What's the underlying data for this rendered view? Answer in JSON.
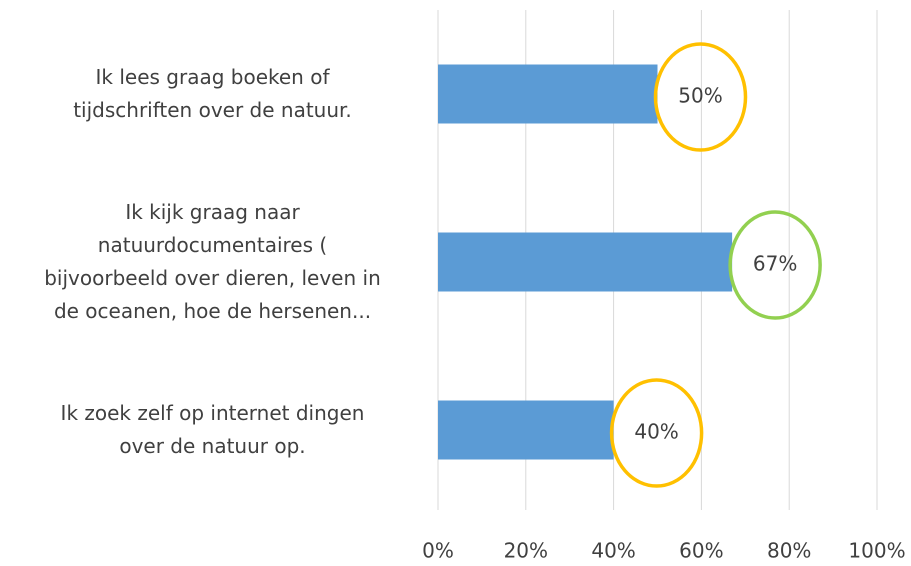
{
  "chart_data": {
    "type": "barh",
    "categories": [
      "Ik lees graag boeken of\ntijdschriften over de natuur.",
      "Ik kijk graag naar\nnatuurdocumentaires (\nbijvoorbeeld over dieren, leven in\nde oceanen, hoe de hersenen...",
      "Ik zoek zelf op internet dingen\nover de natuur op."
    ],
    "values": [
      50,
      67,
      40
    ],
    "value_labels": [
      "50%",
      "67%",
      "40%"
    ],
    "color": "#5b9bd5",
    "label_ring_colors": [
      "#ffc000",
      "#92d050",
      "#ffc000"
    ],
    "xlim": [
      0,
      100
    ],
    "xticks": [
      {
        "value": 0,
        "label": "0%"
      },
      {
        "value": 20,
        "label": "20%"
      },
      {
        "value": 40,
        "label": "40%"
      },
      {
        "value": 60,
        "label": "60%"
      },
      {
        "value": 80,
        "label": "80%"
      },
      {
        "value": 100,
        "label": "100%"
      }
    ],
    "grid": true
  }
}
